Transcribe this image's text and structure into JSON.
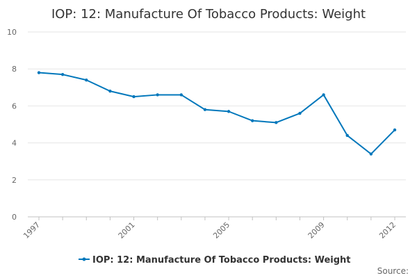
{
  "chart_data": {
    "type": "line",
    "title": "IOP: 12: Manufacture Of Tobacco Products: Weight",
    "xlabel": "",
    "ylabel": "",
    "x": [
      1997,
      1998,
      1999,
      2000,
      2001,
      2002,
      2003,
      2004,
      2005,
      2006,
      2007,
      2008,
      2009,
      2010,
      2011,
      2012
    ],
    "x_tick_labels": [
      "1997",
      "2001",
      "2005",
      "2009",
      "2012"
    ],
    "y_tick_labels": [
      "0",
      "2",
      "4",
      "6",
      "8",
      "10"
    ],
    "ylim": [
      0,
      10
    ],
    "xlim": [
      1997,
      2012
    ],
    "grid": true,
    "legend_position": "bottom",
    "series": [
      {
        "name": "IOP: 12: Manufacture Of Tobacco Products: Weight",
        "color": "#0077bb",
        "values": [
          7.8,
          7.7,
          7.4,
          6.8,
          6.5,
          6.6,
          6.6,
          5.8,
          5.7,
          5.2,
          5.1,
          5.6,
          6.6,
          4.4,
          3.4,
          4.7
        ]
      }
    ],
    "source_label": "Source:"
  }
}
